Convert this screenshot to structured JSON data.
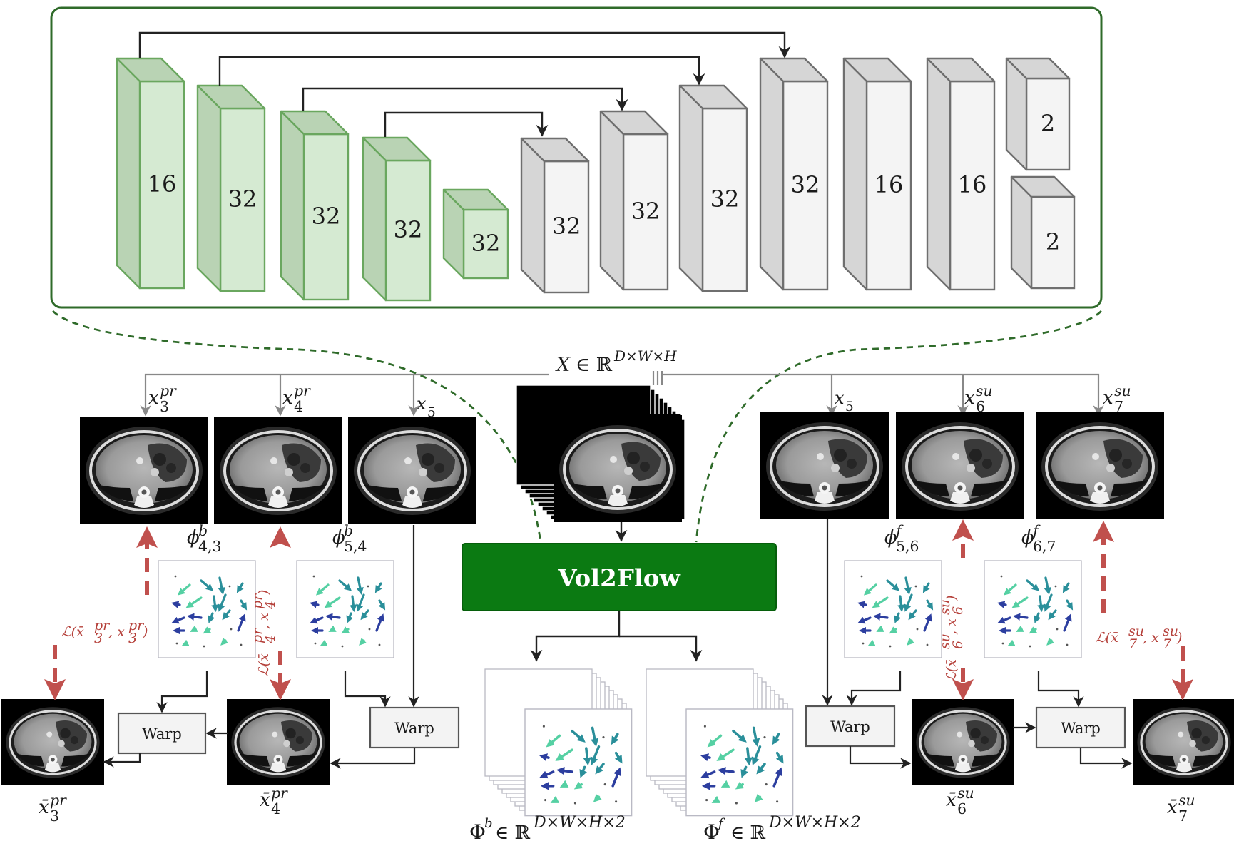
{
  "encoder_blocks": [
    "16",
    "32",
    "32",
    "32",
    "32"
  ],
  "decoder_blocks": [
    "32",
    "32",
    "32",
    "32",
    "16",
    "16"
  ],
  "output_heads": [
    "2",
    "2"
  ],
  "module_label": "Vol2Flow",
  "warp_label": "Warp",
  "colors": {
    "encoder_fill": "#d5ead2",
    "encoder_side": "#b9d3b4",
    "encoder_stroke": "#6aa75f",
    "decoder_fill": "#f4f4f4",
    "decoder_side": "#d6d6d6",
    "decoder_stroke": "#6f6f6f",
    "frame_stroke": "#2f6b2a",
    "module_fill": "#0b7a12",
    "loss_color": "#b5403a",
    "arrow_teal": "#2a9d8f",
    "arrow_blue": "#2c3e9f",
    "arrow_green": "#5cd6a0"
  },
  "labels": {
    "input": {
      "sym": "X",
      "set": "∈ ℝ",
      "sup": "D×W×H"
    },
    "slice_l3": {
      "base": "x",
      "sub": "3",
      "sup": "pr"
    },
    "slice_l4": {
      "base": "x",
      "sub": "4",
      "sup": "pr"
    },
    "slice_l5": {
      "base": "x",
      "sub": "5"
    },
    "slice_r5": {
      "base": "x",
      "sub": "5"
    },
    "slice_r6": {
      "base": "x",
      "sub": "6",
      "sup": "su"
    },
    "slice_r7": {
      "base": "x",
      "sub": "7",
      "sup": "su"
    },
    "flow_43": {
      "base": "ϕ",
      "sub": "4,3",
      "sup": "b"
    },
    "flow_54": {
      "base": "ϕ",
      "sub": "5,4",
      "sup": "b"
    },
    "flow_56": {
      "base": "ϕ",
      "sub": "5,6",
      "sup": "f"
    },
    "flow_67": {
      "base": "ϕ",
      "sub": "6,7",
      "sup": "f"
    },
    "warped_3": {
      "base": "x̄",
      "sub": "3",
      "sup": "pr"
    },
    "warped_4": {
      "base": "x̄",
      "sub": "4",
      "sup": "pr"
    },
    "warped_6": {
      "base": "x̄",
      "sub": "6",
      "sup": "su"
    },
    "warped_7": {
      "base": "x̄",
      "sub": "7",
      "sup": "su"
    },
    "flow_b": {
      "sym": "Φ",
      "symsup": "b",
      "set": "∈ ℝ",
      "sup": "D×W×H×2"
    },
    "flow_f": {
      "sym": "Φ",
      "symsup": "f",
      "set": "∈ ℝ",
      "sup": "D×W×H×2"
    }
  },
  "losses": {
    "l3": {
      "pre": "ℒ(x̄",
      "a_sup": "pr",
      "a_sub": "3",
      "mid": ", x",
      "b_sup": "pr",
      "b_sub": "3",
      "post": ")"
    },
    "l4": {
      "pre": "ℒ(x̄",
      "a_sup": "pr",
      "a_sub": "4",
      "mid": ", x",
      "b_sup": "pr",
      "b_sub": "4",
      "post": ")"
    },
    "l6": {
      "pre": "ℒ(x̄",
      "a_sup": "su",
      "a_sub": "6",
      "mid": ", x",
      "b_sup": "su",
      "b_sub": "6",
      "post": ")"
    },
    "l7": {
      "pre": "ℒ(x̄",
      "a_sup": "su",
      "a_sub": "7",
      "mid": ", x",
      "b_sup": "su",
      "b_sub": "7",
      "post": ")"
    }
  }
}
